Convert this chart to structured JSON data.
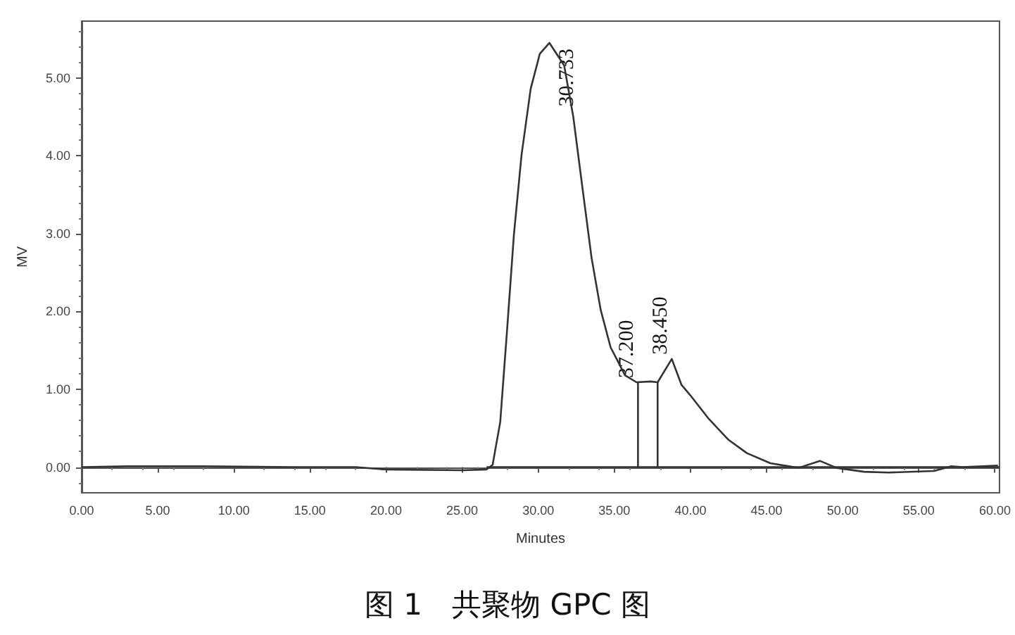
{
  "chart_data": {
    "type": "line",
    "title": "图 1　共聚物 GPC 图",
    "xlabel": "Minutes",
    "ylabel": "MV",
    "xlim": [
      0,
      60.3
    ],
    "ylim": [
      -0.33,
      5.73
    ],
    "xticks": [
      {
        "value": 0,
        "label": "0.00"
      },
      {
        "value": 5,
        "label": "5.00"
      },
      {
        "value": 10,
        "label": "10.00"
      },
      {
        "value": 15,
        "label": "15.00"
      },
      {
        "value": 20,
        "label": "20.00"
      },
      {
        "value": 25,
        "label": "25.00"
      },
      {
        "value": 30,
        "label": "30.00"
      },
      {
        "value": 35,
        "label": "35.00"
      },
      {
        "value": 40,
        "label": "40.00"
      },
      {
        "value": 45,
        "label": "45.00"
      },
      {
        "value": 50,
        "label": "50.00"
      },
      {
        "value": 55,
        "label": "55.00"
      },
      {
        "value": 60,
        "label": "60.00"
      }
    ],
    "yticks": [
      {
        "value": 0,
        "label": "0.00"
      },
      {
        "value": 1,
        "label": "1.00"
      },
      {
        "value": 2,
        "label": "2.00"
      },
      {
        "value": 3,
        "label": "3.00"
      },
      {
        "value": 4,
        "label": "4.00"
      },
      {
        "value": 5,
        "label": "5.00"
      }
    ],
    "marker": "none",
    "line_style": "solid",
    "series": [
      {
        "color": "#333333",
        "x": [
          0,
          3,
          8,
          14,
          18,
          20,
          25,
          26.6,
          27.0,
          27.5,
          27.96,
          28.4,
          28.9,
          29.5,
          30.1,
          30.733,
          31.7,
          32.3,
          32.9,
          33.5,
          34.1,
          34.75,
          35.7,
          36.45,
          37.38,
          37.84,
          38.77,
          39.4,
          40.0,
          41.2,
          42.5,
          43.7,
          45.25,
          47.1,
          48.5,
          49.6,
          51.4,
          53.0,
          56.0,
          57.1,
          57.9,
          60.2
        ],
        "values": [
          0,
          0.01,
          0.01,
          0.0,
          0.0,
          -0.03,
          -0.04,
          -0.03,
          0.03,
          0.58,
          1.79,
          2.99,
          4.01,
          4.86,
          5.31,
          5.45,
          5.16,
          4.5,
          3.59,
          2.69,
          2.02,
          1.54,
          1.18,
          1.09,
          1.1,
          1.09,
          1.39,
          1.06,
          0.92,
          0.62,
          0.35,
          0.18,
          0.05,
          -0.01,
          0.08,
          -0.01,
          -0.06,
          -0.07,
          -0.05,
          0.01,
          0.0,
          0.02
        ]
      },
      {
        "color": "#333333",
        "x": [
          26.6,
          60.3
        ],
        "values": [
          0,
          0
        ]
      },
      {
        "color": "#333333",
        "x": [
          36.55,
          36.55
        ],
        "values": [
          0,
          1.09
        ]
      },
      {
        "color": "#333333",
        "x": [
          37.84,
          37.84
        ],
        "values": [
          0,
          1.09
        ]
      }
    ],
    "annotations": [
      {
        "text": "30.733",
        "x": 30.733,
        "y": 5.45
      },
      {
        "text": "37.200",
        "x": 36.55,
        "y": 1.09
      },
      {
        "text": "38.450",
        "x": 38.77,
        "y": 1.39
      }
    ]
  }
}
